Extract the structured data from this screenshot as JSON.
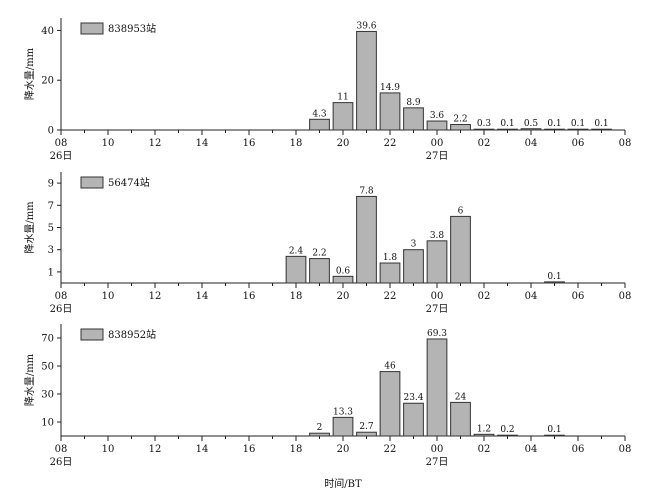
{
  "xlabel": "时间/BT",
  "chart_data": [
    {
      "type": "bar",
      "legend": "838953站",
      "ylabel": "降水量/mm",
      "xlim": [
        8,
        32
      ],
      "ylim": [
        0,
        45
      ],
      "yticks": [
        0,
        20,
        40
      ],
      "xticks": [
        {
          "x": 8,
          "label": "08",
          "sub": "26日"
        },
        {
          "x": 10,
          "label": "10",
          "sub": ""
        },
        {
          "x": 12,
          "label": "12",
          "sub": ""
        },
        {
          "x": 14,
          "label": "14",
          "sub": ""
        },
        {
          "x": 16,
          "label": "16",
          "sub": ""
        },
        {
          "x": 18,
          "label": "18",
          "sub": ""
        },
        {
          "x": 20,
          "label": "20",
          "sub": ""
        },
        {
          "x": 22,
          "label": "22",
          "sub": ""
        },
        {
          "x": 24,
          "label": "00",
          "sub": "27日"
        },
        {
          "x": 26,
          "label": "02",
          "sub": ""
        },
        {
          "x": 28,
          "label": "04",
          "sub": ""
        },
        {
          "x": 30,
          "label": "06",
          "sub": ""
        },
        {
          "x": 32,
          "label": "08",
          "sub": ""
        }
      ],
      "bars": [
        {
          "x": 19,
          "value": 4.3,
          "label": "4.3"
        },
        {
          "x": 20,
          "value": 11,
          "label": "11"
        },
        {
          "x": 21,
          "value": 39.6,
          "label": "39.6"
        },
        {
          "x": 22,
          "value": 14.9,
          "label": "14.9"
        },
        {
          "x": 23,
          "value": 8.9,
          "label": "8.9"
        },
        {
          "x": 24,
          "value": 3.6,
          "label": "3.6"
        },
        {
          "x": 25,
          "value": 2.2,
          "label": "2.2"
        },
        {
          "x": 26,
          "value": 0.3,
          "label": "0.3"
        },
        {
          "x": 27,
          "value": 0.1,
          "label": "0.1"
        },
        {
          "x": 28,
          "value": 0.5,
          "label": "0.5"
        },
        {
          "x": 29,
          "value": 0.1,
          "label": "0.1"
        },
        {
          "x": 30,
          "value": 0.1,
          "label": "0.1"
        },
        {
          "x": 31,
          "value": 0.1,
          "label": "0.1"
        }
      ]
    },
    {
      "type": "bar",
      "legend": "56474站",
      "ylabel": "降水量/mm",
      "xlim": [
        8,
        32
      ],
      "ylim": [
        0,
        10
      ],
      "yticks": [
        1,
        3,
        5,
        7,
        9
      ],
      "xticks": [
        {
          "x": 8,
          "label": "08",
          "sub": "26日"
        },
        {
          "x": 10,
          "label": "10",
          "sub": ""
        },
        {
          "x": 12,
          "label": "12",
          "sub": ""
        },
        {
          "x": 14,
          "label": "14",
          "sub": ""
        },
        {
          "x": 16,
          "label": "16",
          "sub": ""
        },
        {
          "x": 18,
          "label": "18",
          "sub": ""
        },
        {
          "x": 20,
          "label": "20",
          "sub": ""
        },
        {
          "x": 22,
          "label": "22",
          "sub": ""
        },
        {
          "x": 24,
          "label": "00",
          "sub": "27日"
        },
        {
          "x": 26,
          "label": "02",
          "sub": ""
        },
        {
          "x": 28,
          "label": "04",
          "sub": ""
        },
        {
          "x": 30,
          "label": "06",
          "sub": ""
        },
        {
          "x": 32,
          "label": "08",
          "sub": ""
        }
      ],
      "bars": [
        {
          "x": 18,
          "value": 2.4,
          "label": "2.4"
        },
        {
          "x": 19,
          "value": 2.2,
          "label": "2.2"
        },
        {
          "x": 20,
          "value": 0.6,
          "label": "0.6"
        },
        {
          "x": 21,
          "value": 7.8,
          "label": "7.8"
        },
        {
          "x": 22,
          "value": 1.8,
          "label": "1.8"
        },
        {
          "x": 23,
          "value": 3,
          "label": "3"
        },
        {
          "x": 24,
          "value": 3.8,
          "label": "3.8"
        },
        {
          "x": 25,
          "value": 6,
          "label": "6"
        },
        {
          "x": 29,
          "value": 0.1,
          "label": "0.1"
        }
      ]
    },
    {
      "type": "bar",
      "legend": "838952站",
      "ylabel": "降水量/mm",
      "xlim": [
        8,
        32
      ],
      "ylim": [
        0,
        80
      ],
      "yticks": [
        10,
        30,
        50,
        70
      ],
      "xticks": [
        {
          "x": 8,
          "label": "08",
          "sub": "26日"
        },
        {
          "x": 10,
          "label": "10",
          "sub": ""
        },
        {
          "x": 12,
          "label": "12",
          "sub": ""
        },
        {
          "x": 14,
          "label": "14",
          "sub": ""
        },
        {
          "x": 16,
          "label": "16",
          "sub": ""
        },
        {
          "x": 18,
          "label": "18",
          "sub": ""
        },
        {
          "x": 20,
          "label": "20",
          "sub": ""
        },
        {
          "x": 22,
          "label": "22",
          "sub": ""
        },
        {
          "x": 24,
          "label": "00",
          "sub": "27日"
        },
        {
          "x": 26,
          "label": "02",
          "sub": ""
        },
        {
          "x": 28,
          "label": "04",
          "sub": ""
        },
        {
          "x": 30,
          "label": "06",
          "sub": ""
        },
        {
          "x": 32,
          "label": "08",
          "sub": ""
        }
      ],
      "bars": [
        {
          "x": 19,
          "value": 2,
          "label": "2"
        },
        {
          "x": 20,
          "value": 13.3,
          "label": "13.3"
        },
        {
          "x": 21,
          "value": 2.7,
          "label": "2.7"
        },
        {
          "x": 22,
          "value": 46,
          "label": "46"
        },
        {
          "x": 23,
          "value": 23.4,
          "label": "23.4"
        },
        {
          "x": 24,
          "value": 69.3,
          "label": "69.3"
        },
        {
          "x": 25,
          "value": 24,
          "label": "24"
        },
        {
          "x": 26,
          "value": 1.2,
          "label": "1.2"
        },
        {
          "x": 27,
          "value": 0.2,
          "label": "0.2"
        },
        {
          "x": 29,
          "value": 0.1,
          "label": "0.1"
        }
      ]
    }
  ],
  "colors": {
    "bar_fill": "#b4b4b4",
    "bar_stroke": "#333333",
    "axis": "#222222"
  }
}
